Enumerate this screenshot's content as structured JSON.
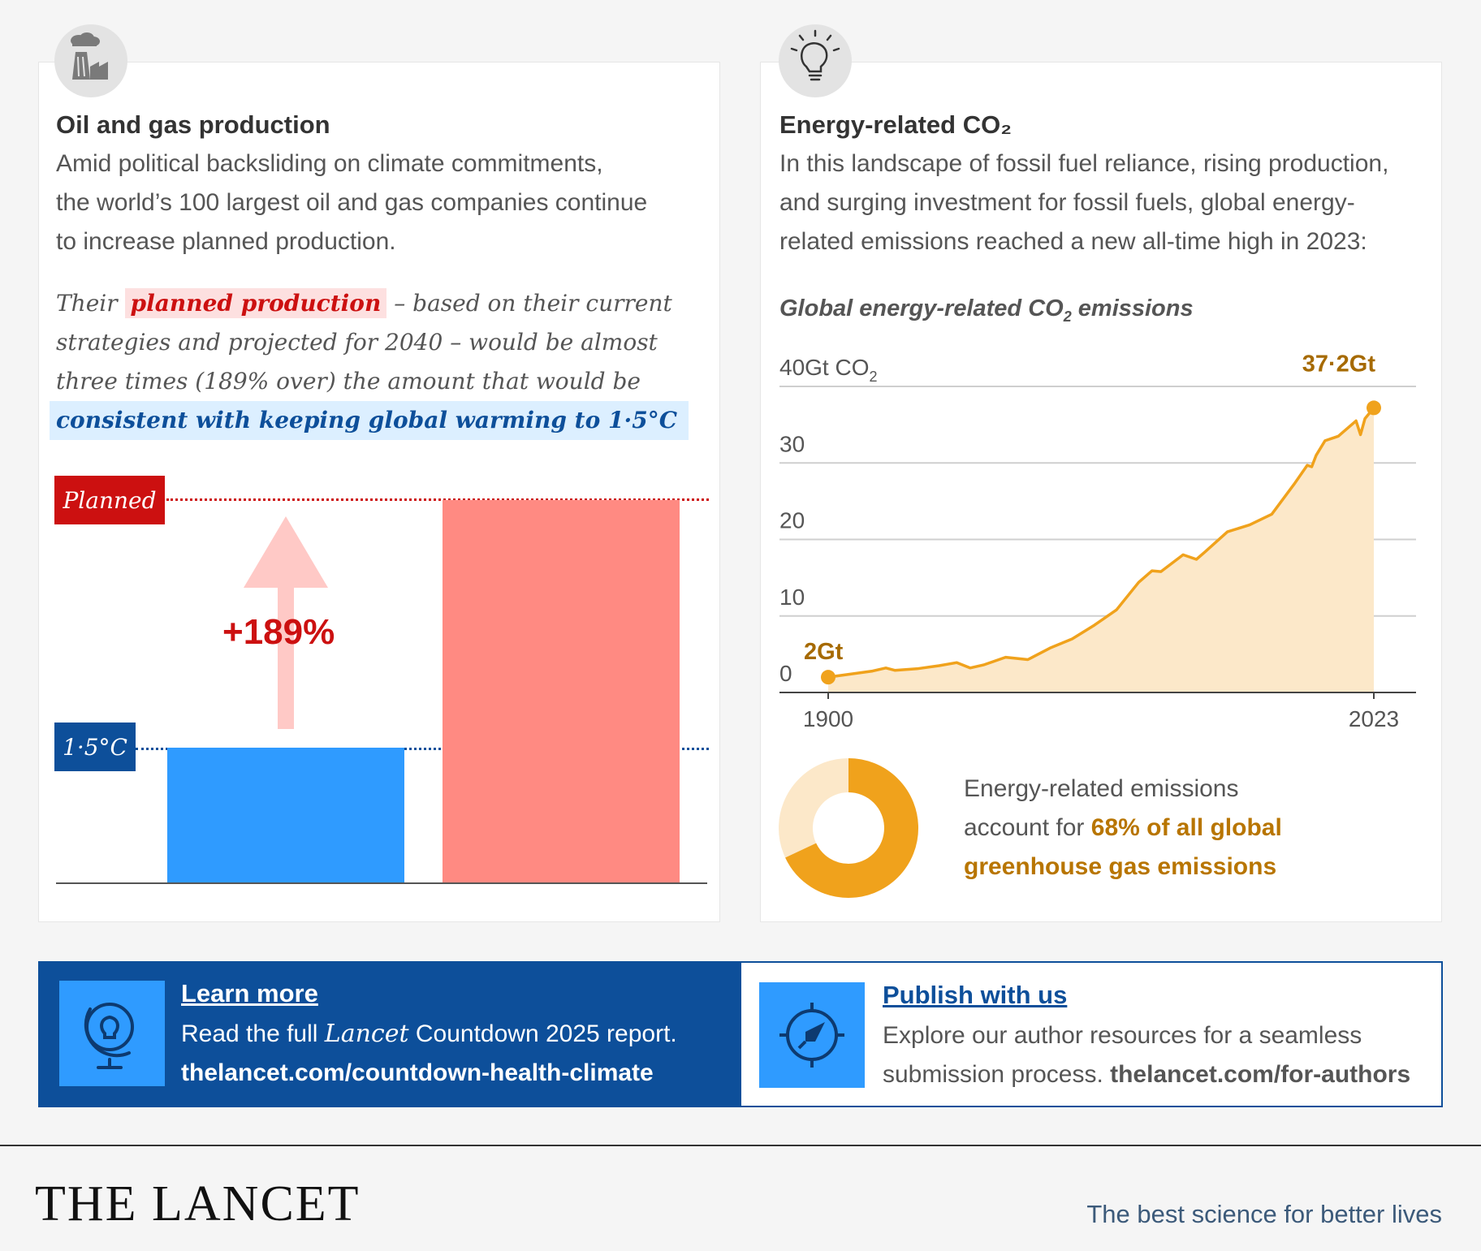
{
  "left_panel": {
    "title": "Oil and gas production",
    "body_lines": [
      "Amid political backsliding on climate commitments,",
      "the world’s 100 largest oil and gas companies continue",
      "to increase planned production."
    ],
    "para_pre": "Their",
    "highlight_planned": "planned production",
    "para_l1_post": " – based on their current",
    "para_l2": "strategies and projected for 2040 – would be almost",
    "para_l3": "three times (189% over) the amount that would be",
    "highlight_consistent": "consistent with keeping global warming to 1·5°C",
    "icon": "factory-icon"
  },
  "right_panel": {
    "title": "Energy-related CO₂",
    "body_lines": [
      "In this landscape of fossil fuel reliance, rising production,",
      "and surging investment for fossil fuels, global energy-",
      "related emissions reached a new all-time high in 2023:"
    ],
    "chart_subtitle_pre": "Global energy-related CO",
    "chart_subtitle_sub": "2",
    "chart_subtitle_post": " emissions",
    "icon": "lightbulb-icon"
  },
  "donut": {
    "line1": "Energy-related emissions",
    "line2_pre": "account for ",
    "line2_em": "68% of all global",
    "line3_em": "greenhouse gas emissions",
    "share": 0.68,
    "color_main": "#f0a21c",
    "color_rest": "#fce8c9"
  },
  "chart_data": [
    {
      "type": "bar",
      "categories": [
        "1·5°C",
        "Planned"
      ],
      "values": [
        100,
        289
      ],
      "unit": "relative production (1·5°C-consistent = 100)",
      "ref_labels": {
        "planned": "Planned",
        "onefive": "1·5°C"
      },
      "change_label": "+189%",
      "colors": {
        "onefive": "#2f9bff",
        "planned": "#ff8a82",
        "onefive_ref": "#0d4f9a",
        "planned_ref": "#cc1010"
      }
    },
    {
      "type": "area",
      "title": "Global energy-related CO2 emissions",
      "ylabel_pre": "40Gt CO",
      "ylabel_sub": "2",
      "ylim": [
        0,
        40
      ],
      "yticks": [
        0,
        10,
        20,
        30,
        40
      ],
      "ytick_labels": [
        "0",
        "10",
        "20",
        "30",
        ""
      ],
      "xlim": [
        1900,
        2023
      ],
      "xtick_labels": [
        "1900",
        "2023"
      ],
      "x": [
        1900,
        1905,
        1910,
        1913,
        1915,
        1920,
        1925,
        1929,
        1932,
        1935,
        1940,
        1945,
        1950,
        1955,
        1960,
        1965,
        1970,
        1973,
        1975,
        1980,
        1983,
        1985,
        1990,
        1995,
        2000,
        2005,
        2008,
        2009,
        2010,
        2012,
        2015,
        2019,
        2020,
        2021,
        2023
      ],
      "y": [
        2.0,
        2.4,
        2.8,
        3.2,
        2.9,
        3.1,
        3.5,
        3.9,
        3.2,
        3.6,
        4.6,
        4.3,
        5.8,
        7.0,
        8.8,
        10.8,
        14.4,
        15.9,
        15.8,
        18.0,
        17.4,
        18.4,
        21.0,
        21.9,
        23.3,
        27.2,
        29.7,
        29.5,
        31.0,
        32.9,
        33.5,
        35.5,
        33.7,
        35.8,
        37.2
      ],
      "start_label": "2Gt",
      "end_label": "37·2Gt",
      "line_color": "#f0a21c",
      "fill_color": "#fce8c9",
      "label_color": "#a66a00"
    }
  ],
  "banner_left": {
    "link": "Learn more",
    "text_pre": "Read the full ",
    "text_em": "Lancet",
    "text_post": " Countdown 2025 report.",
    "url": "thelancet.com/countdown-health-climate",
    "icon": "globe-lightbulb-icon"
  },
  "banner_right": {
    "link": "Publish with us",
    "line1": "Explore our author resources for a seamless",
    "line2_pre": "submission process. ",
    "url": "thelancet.com/for-authors",
    "icon": "compass-icon"
  },
  "footer": {
    "logo": "THE LANCET",
    "tagline": "The best science for better lives"
  }
}
